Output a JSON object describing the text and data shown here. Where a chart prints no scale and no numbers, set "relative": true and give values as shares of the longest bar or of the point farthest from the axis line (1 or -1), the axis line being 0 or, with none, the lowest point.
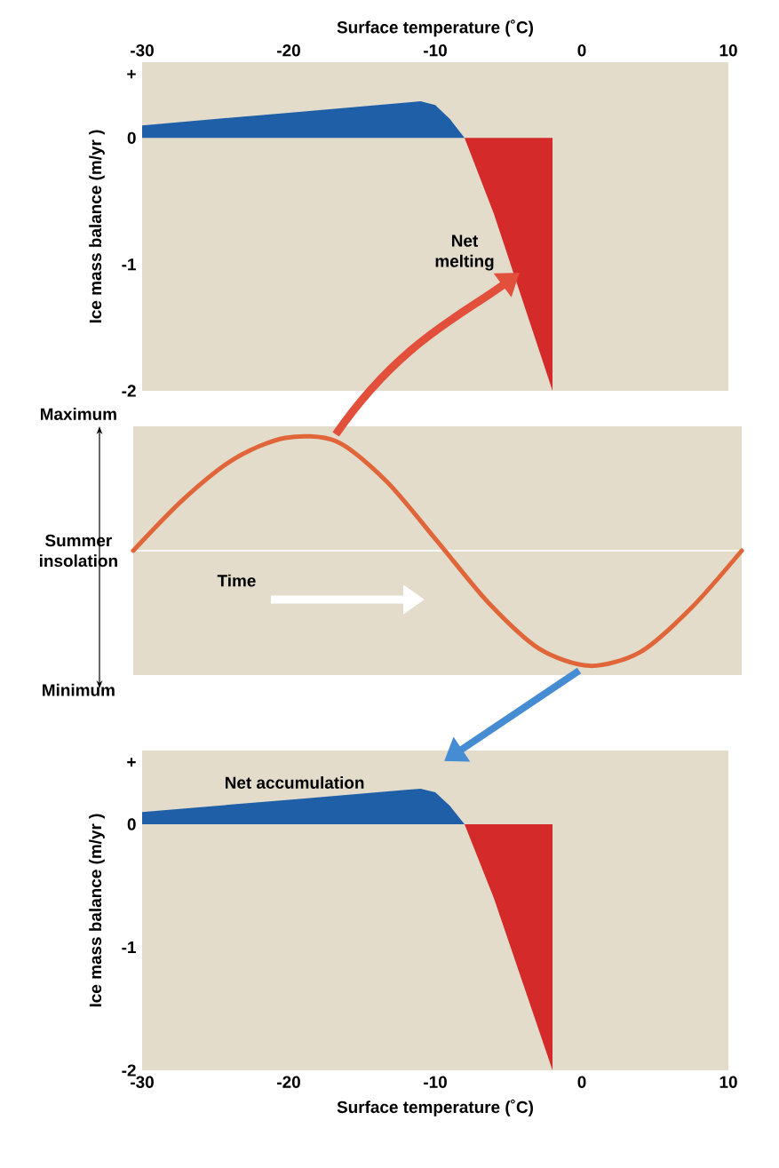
{
  "chart_data": [
    {
      "type": "area",
      "xlabel": "Surface temperature (˚C)",
      "ylabel": "Ice mass balance (m/yr )",
      "xlim": [
        -30,
        10
      ],
      "xticks": [
        -30,
        -20,
        -10,
        0,
        10
      ],
      "ylim": [
        -2,
        0.6
      ],
      "yticks": [
        -2,
        -1,
        0,
        {
          "value": 0.5,
          "label": "+"
        }
      ],
      "series": [
        {
          "color": "#1f5fa8",
          "x": [
            -30,
            -20,
            -12,
            -11,
            -10,
            -9,
            -8
          ],
          "values": [
            0.1,
            0.2,
            0.28,
            0.29,
            0.26,
            0.15,
            0
          ]
        },
        {
          "color": "#d42a2a",
          "x": [
            -8,
            -7,
            -6,
            -5,
            -4,
            -3,
            -2
          ],
          "values": [
            0,
            -0.3,
            -0.6,
            -0.95,
            -1.3,
            -1.65,
            -2
          ]
        }
      ],
      "annotations": [
        "Net melting"
      ]
    },
    {
      "type": "line",
      "relative": true,
      "ylabel": "Summer insolation",
      "color": "#e0663a",
      "categories": [
        null,
        null,
        null,
        null,
        null,
        null,
        null,
        null,
        null,
        null,
        null,
        null,
        null
      ],
      "values": [
        0,
        0.45,
        0.8,
        0.98,
        0.95,
        0.6,
        0.08,
        -0.45,
        -0.85,
        -1,
        -0.88,
        -0.5,
        0
      ],
      "annotations": [
        "Maximum",
        "Minimum",
        "Time"
      ]
    },
    {
      "type": "area",
      "xlabel": "Surface temperature (˚C)",
      "ylabel": "Ice mass balance (m/yr )",
      "xlim": [
        -30,
        10
      ],
      "xticks": [
        -30,
        -20,
        -10,
        0,
        10
      ],
      "ylim": [
        -2,
        0.6
      ],
      "yticks": [
        -2,
        -1,
        0,
        {
          "value": 0.5,
          "label": "+"
        }
      ],
      "series": [
        {
          "color": "#1f5fa8",
          "x": [
            -30,
            -20,
            -12,
            -11,
            -10,
            -9,
            -8
          ],
          "values": [
            0.1,
            0.2,
            0.28,
            0.29,
            0.26,
            0.15,
            0
          ]
        },
        {
          "color": "#d42a2a",
          "x": [
            -8,
            -7,
            -6,
            -5,
            -4,
            -3,
            -2
          ],
          "values": [
            0,
            -0.3,
            -0.6,
            -0.95,
            -1.3,
            -1.65,
            -2
          ]
        }
      ],
      "annotations": [
        "Net accumulation"
      ]
    }
  ]
}
